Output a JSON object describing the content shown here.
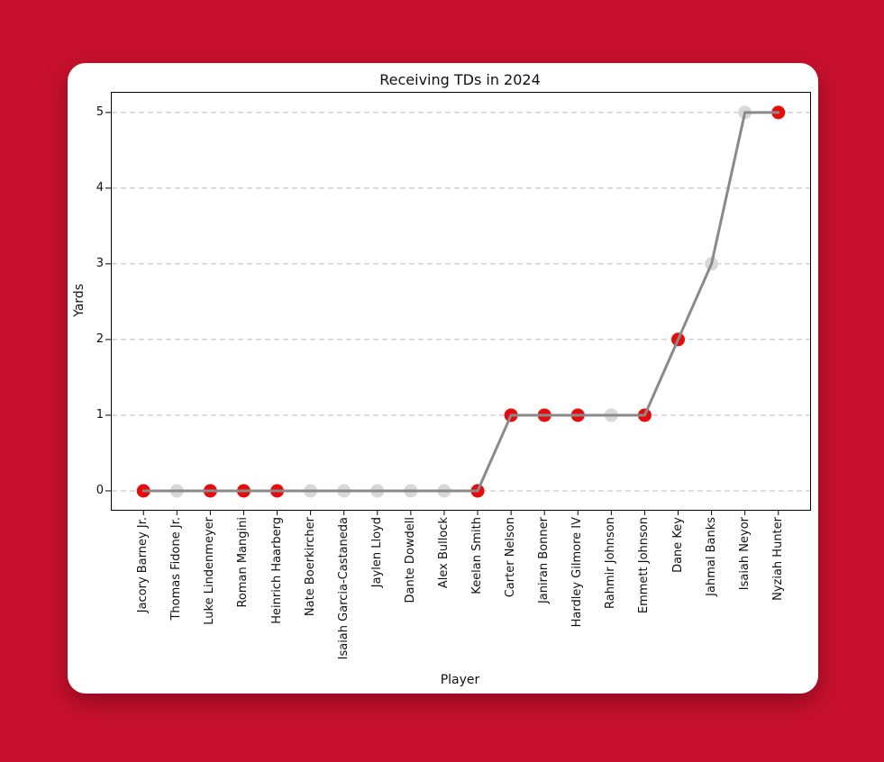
{
  "window": {
    "background_color": "#c8102e",
    "card_color": "#ffffff"
  },
  "chart_data": {
    "type": "line",
    "title": "Receiving TDs in 2024",
    "xlabel": "Player",
    "ylabel": "Yards",
    "categories": [
      "Jacory Barney Jr.",
      "Thomas Fidone Jr.",
      "Luke Lindenmeyer",
      "Roman Mangini",
      "Heinrich Haarberg",
      "Nate Boerkircher",
      "Isaiah Garcia-Castaneda",
      "Jaylen Lloyd",
      "Dante Dowdell",
      "Alex Bullock",
      "Keelan Smith",
      "Carter Nelson",
      "Janiran Bonner",
      "Hardley Gilmore IV",
      "Rahmir Johnson",
      "Emmett Johnson",
      "Dane Key",
      "Jahmal Banks",
      "Isaiah Neyor",
      "Nyziah Hunter"
    ],
    "values": [
      0,
      0,
      0,
      0,
      0,
      0,
      0,
      0,
      0,
      0,
      0,
      1,
      1,
      1,
      1,
      1,
      2,
      3,
      5,
      5
    ],
    "point_colors": [
      "red",
      "gray",
      "red",
      "red",
      "red",
      "gray",
      "gray",
      "gray",
      "gray",
      "gray",
      "red",
      "red",
      "red",
      "red",
      "gray",
      "red",
      "red",
      "gray",
      "gray",
      "red"
    ],
    "colors": {
      "red": "#e60c0c",
      "gray": "#d8d8d8",
      "line": "#8a8a8a",
      "grid": "#bbbbbb",
      "axis": "#000000"
    },
    "yticks": [
      0,
      1,
      2,
      3,
      4,
      5
    ],
    "ylim": [
      -0.25,
      5.26
    ],
    "xlim": [
      -0.95,
      19.95
    ],
    "grid": "horizontal-dashed",
    "legend": "none",
    "marker_radius": 7.5,
    "line_width": 3
  }
}
